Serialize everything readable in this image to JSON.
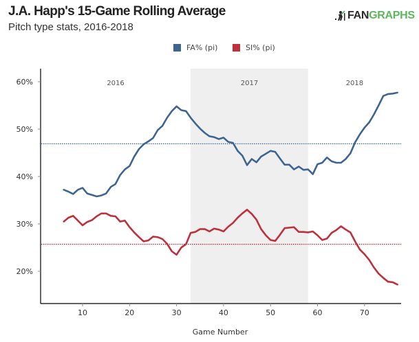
{
  "header": {
    "title": "J.A. Happ's 15-Game Rolling Average",
    "subtitle": "Pitch type stats, 2016-2018",
    "logo_left": "FAN",
    "logo_right": "GRAPHS",
    "logo_icon": "batter-icon"
  },
  "colors": {
    "fa": "#3e6590",
    "si": "#c0303c",
    "shade": "#efefef",
    "logo_green": "#5cb85c"
  },
  "chart_data": {
    "type": "line",
    "title": "J.A. Happ's 15-Game Rolling Average",
    "subtitle": "Pitch type stats, 2016-2018",
    "xlabel": "Game Number",
    "ylabel": "",
    "xlim": [
      1,
      78
    ],
    "ylim": [
      13,
      62.5
    ],
    "xticks": [
      10,
      20,
      30,
      40,
      50,
      60,
      70
    ],
    "xtick_labels": [
      "10",
      "20",
      "30",
      "40",
      "50",
      "60",
      "70"
    ],
    "yticks": [
      20,
      30,
      40,
      50,
      60
    ],
    "ytick_labels": [
      "20%",
      "30%",
      "40%",
      "50%",
      "60%"
    ],
    "grid": false,
    "legend_position": "top-center",
    "season_bands": [
      {
        "label": "2016",
        "start": 1,
        "end": 33,
        "shaded": false
      },
      {
        "label": "2017",
        "start": 33,
        "end": 58,
        "shaded": true
      },
      {
        "label": "2018",
        "start": 58,
        "end": 78,
        "shaded": false
      }
    ],
    "x": [
      6,
      7,
      8,
      9,
      10,
      11,
      12,
      13,
      14,
      15,
      16,
      17,
      18,
      19,
      20,
      21,
      22,
      23,
      24,
      25,
      26,
      27,
      28,
      29,
      30,
      31,
      32,
      33,
      34,
      35,
      36,
      37,
      38,
      39,
      40,
      41,
      42,
      43,
      44,
      45,
      46,
      47,
      48,
      49,
      50,
      51,
      52,
      53,
      54,
      55,
      56,
      57,
      58,
      59,
      60,
      61,
      62,
      63,
      64,
      65,
      66,
      67,
      68,
      69,
      70,
      71,
      72,
      73,
      74,
      75,
      76,
      77
    ],
    "series": [
      {
        "name": "FA% (pi)",
        "color": "#3e6590",
        "average": 46.9,
        "values": [
          37.2,
          36.8,
          36.3,
          37.2,
          37.6,
          36.4,
          36.1,
          35.8,
          36.0,
          36.4,
          37.8,
          38.4,
          40.3,
          41.5,
          42.2,
          44.2,
          45.8,
          46.8,
          47.4,
          48.1,
          49.8,
          50.7,
          52.4,
          53.8,
          54.8,
          54.0,
          53.8,
          52.4,
          51.2,
          50.1,
          49.2,
          48.5,
          48.3,
          47.9,
          48.2,
          47.3,
          47.1,
          45.4,
          44.4,
          42.4,
          43.7,
          43.0,
          44.2,
          44.8,
          45.4,
          45.2,
          43.8,
          42.5,
          42.5,
          41.5,
          42.1,
          41.4,
          41.5,
          40.5,
          42.6,
          42.9,
          44.0,
          43.2,
          42.9,
          42.9,
          43.7,
          44.9,
          47.2,
          48.9,
          50.3,
          51.4,
          53.1,
          55.0,
          57.0,
          57.4,
          57.5,
          57.7
        ]
      },
      {
        "name": "SI% (pi)",
        "color": "#c0303c",
        "average": 25.7,
        "values": [
          30.5,
          31.3,
          31.7,
          30.7,
          29.7,
          30.4,
          30.8,
          31.6,
          32.2,
          32.2,
          31.7,
          31.6,
          30.5,
          30.7,
          29.3,
          28.2,
          27.2,
          26.3,
          26.5,
          27.3,
          27.2,
          26.8,
          25.8,
          24.2,
          23.5,
          25.0,
          25.7,
          28.1,
          28.3,
          28.9,
          28.9,
          28.4,
          29.0,
          28.8,
          28.4,
          29.4,
          30.2,
          31.3,
          32.2,
          33.0,
          32.1,
          30.9,
          28.9,
          27.6,
          26.6,
          26.4,
          27.7,
          29.1,
          29.2,
          29.3,
          28.3,
          28.3,
          28.2,
          28.4,
          27.6,
          26.6,
          26.9,
          28.1,
          28.7,
          29.5,
          28.8,
          28.2,
          26.3,
          24.6,
          23.6,
          22.4,
          20.8,
          19.5,
          18.6,
          17.8,
          17.7,
          17.2
        ]
      }
    ]
  }
}
